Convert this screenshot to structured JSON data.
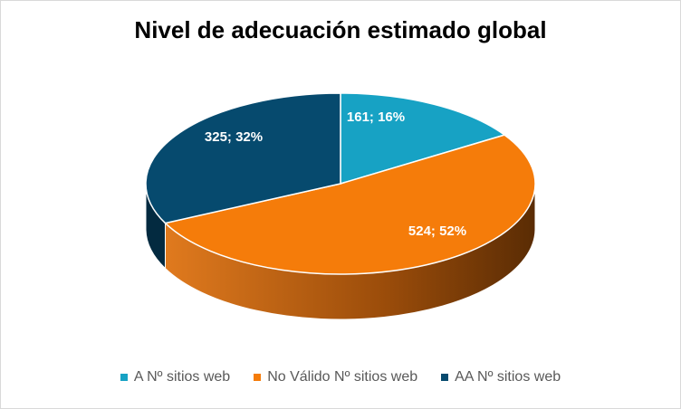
{
  "chart_data": {
    "type": "pie",
    "title": "Nivel de adecuación estimado global",
    "slices": [
      {
        "name": "A Nº sitios web",
        "value": 161,
        "percent": 16,
        "label": "161; 16%",
        "color": "#17a2c4",
        "dark": "#0e6f87"
      },
      {
        "name": "No Válido Nº sitios web",
        "value": 524,
        "percent": 52,
        "label": "524; 52%",
        "color": "#f57c0a",
        "dark": "#7a3d05"
      },
      {
        "name": "AA Nº sitios web",
        "value": 325,
        "percent": 32,
        "label": "325; 32%",
        "color": "#064a6e",
        "dark": "#032a40"
      }
    ],
    "legend_position": "bottom"
  }
}
